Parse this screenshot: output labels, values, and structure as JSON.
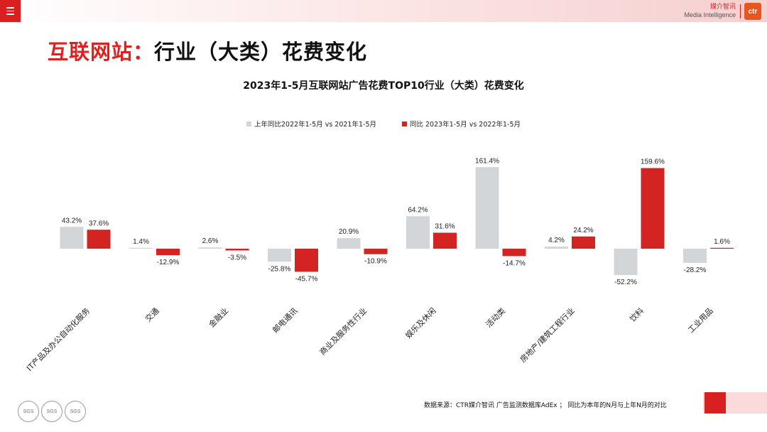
{
  "menu": {
    "icon": "menu-icon"
  },
  "brand": {
    "cn": "媒介智讯",
    "en": "Media Intelligence",
    "logo_text": "ctr"
  },
  "page_title": {
    "accent": "互联网站：",
    "rest": "行业（大类）花费变化"
  },
  "footer": {
    "source": "数据来源：CTR媒介智讯 广告监测数据库AdEx ；  同比为本年的N月与上年N月的对比"
  },
  "certifications": [
    "SGS",
    "SGS",
    "SGS"
  ],
  "colors": {
    "prev": "#d2d6d8",
    "curr": "#d42421",
    "accent": "#e0201e"
  },
  "chart_data": {
    "type": "bar",
    "title": "2023年1-5月互联网站广告花费TOP10行业（大类）花费变化",
    "categories": [
      "IT产品及办公自动化服务",
      "交通",
      "金融业",
      "邮电通讯",
      "商业及服务性行业",
      "娱乐及休闲",
      "活动类",
      "房地产/建筑工程行业",
      "饮料",
      "工业用品"
    ],
    "series": [
      {
        "name": "上年同比2022年1-5月  vs  2021年1-5月",
        "color": "#d2d6d8",
        "values": [
          43.2,
          1.4,
          2.6,
          -25.8,
          20.9,
          64.2,
          161.4,
          4.2,
          -52.2,
          -28.2
        ],
        "labels": [
          "43.2%",
          "1.4%",
          "2.6%",
          "-25.8%",
          "20.9%",
          "64.2%",
          "161.4%",
          "4.2%",
          "-52.2%",
          "-28.2%"
        ]
      },
      {
        "name": "同比 2023年1-5月  vs  2022年1-5月",
        "color": "#d42421",
        "values": [
          37.6,
          -12.9,
          -3.5,
          -45.7,
          -10.9,
          31.6,
          -14.7,
          24.2,
          159.6,
          1.6
        ],
        "labels": [
          "37.6%",
          "-12.9%",
          "-3.5%",
          "-45.7%",
          "-10.9%",
          "31.6%",
          "-14.7%",
          "24.2%",
          "159.6%",
          "1.6%"
        ]
      }
    ],
    "xlabel": "",
    "ylabel": "",
    "ylim": [
      -60,
      165
    ],
    "grid": false,
    "legend": "top-center"
  }
}
